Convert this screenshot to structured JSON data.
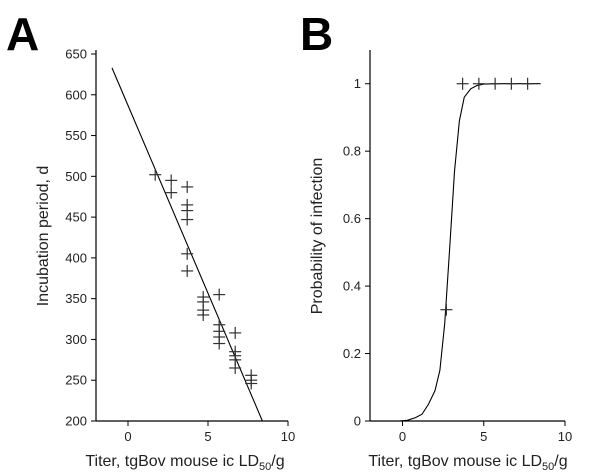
{
  "chart_data": [
    {
      "panel": "A",
      "type": "scatter",
      "xlabel": "Titer, tgBov mouse ic LD",
      "xlabel_sub": "50",
      "xlabel_suffix": "/g",
      "ylabel": "Incubation period, d",
      "xlim": [
        -2,
        10
      ],
      "ylim": [
        200,
        650
      ],
      "xticks": [
        0,
        5,
        10
      ],
      "yticks": [
        200,
        250,
        300,
        350,
        400,
        450,
        500,
        550,
        600,
        650
      ],
      "grid": false,
      "legend": "none",
      "marker": "plus",
      "points": [
        {
          "x": 1.7,
          "y": 502
        },
        {
          "x": 2.7,
          "y": 495
        },
        {
          "x": 2.7,
          "y": 480
        },
        {
          "x": 3.7,
          "y": 487
        },
        {
          "x": 3.7,
          "y": 465
        },
        {
          "x": 3.7,
          "y": 458
        },
        {
          "x": 3.7,
          "y": 447
        },
        {
          "x": 3.7,
          "y": 405
        },
        {
          "x": 3.7,
          "y": 384
        },
        {
          "x": 4.7,
          "y": 352
        },
        {
          "x": 4.7,
          "y": 346
        },
        {
          "x": 4.7,
          "y": 336
        },
        {
          "x": 4.7,
          "y": 330
        },
        {
          "x": 5.7,
          "y": 355
        },
        {
          "x": 5.7,
          "y": 318
        },
        {
          "x": 5.7,
          "y": 310
        },
        {
          "x": 5.7,
          "y": 303
        },
        {
          "x": 5.7,
          "y": 295
        },
        {
          "x": 6.7,
          "y": 308
        },
        {
          "x": 6.7,
          "y": 285
        },
        {
          "x": 6.7,
          "y": 280
        },
        {
          "x": 6.7,
          "y": 275
        },
        {
          "x": 6.7,
          "y": 265
        },
        {
          "x": 7.7,
          "y": 256
        },
        {
          "x": 7.7,
          "y": 250
        },
        {
          "x": 7.7,
          "y": 246
        }
      ],
      "fit_line": {
        "x": [
          -1.0,
          8.4
        ],
        "y": [
          633,
          200
        ]
      }
    },
    {
      "panel": "B",
      "type": "scatter",
      "xlabel": "Titer, tgBov mouse ic LD",
      "xlabel_sub": "50",
      "xlabel_suffix": "/g",
      "ylabel": "Probability of infection",
      "xlim": [
        -2,
        10
      ],
      "ylim": [
        0,
        1.1
      ],
      "xticks": [
        0,
        5,
        10
      ],
      "yticks": [
        0,
        0.2,
        0.4,
        0.6,
        0.8,
        1
      ],
      "grid": false,
      "legend": "none",
      "marker": "plus",
      "points": [
        {
          "x": 2.7,
          "y": 0.33
        },
        {
          "x": 3.7,
          "y": 1
        },
        {
          "x": 4.7,
          "y": 1
        },
        {
          "x": 5.7,
          "y": 1
        },
        {
          "x": 6.7,
          "y": 1
        },
        {
          "x": 7.7,
          "y": 1
        }
      ],
      "fit_curve": {
        "x": [
          -0.2,
          0.3,
          0.8,
          1.2,
          1.6,
          2.0,
          2.3,
          2.6,
          2.9,
          3.2,
          3.5,
          3.8,
          4.2,
          4.6,
          5.0,
          6.0,
          7.0,
          8.5
        ],
        "y": [
          0.0,
          0.002,
          0.01,
          0.02,
          0.05,
          0.09,
          0.15,
          0.29,
          0.51,
          0.74,
          0.89,
          0.96,
          0.985,
          0.995,
          0.999,
          1.0,
          1.0,
          1.0
        ]
      }
    }
  ],
  "panels": {
    "a": {
      "letter": "A",
      "yticks": [
        "200",
        "250",
        "300",
        "350",
        "400",
        "450",
        "500",
        "550",
        "600",
        "650"
      ],
      "xticks": [
        "0",
        "5",
        "10"
      ]
    },
    "b": {
      "letter": "B",
      "yticks": [
        "0",
        "0.2",
        "0.4",
        "0.6",
        "0.8",
        "1"
      ],
      "xticks": [
        "0",
        "5",
        "10"
      ]
    }
  }
}
